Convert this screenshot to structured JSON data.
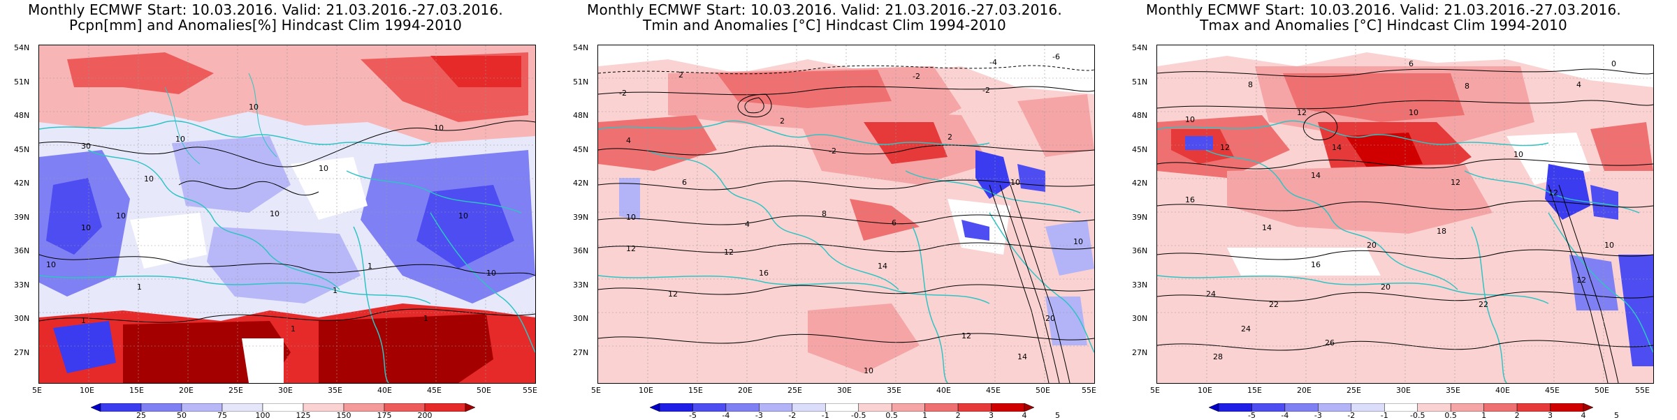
{
  "panels": [
    {
      "id": "pcpn",
      "title_line1": "Monthly ECMWF Start: 10.03.2016. Valid: 21.03.2016.-27.03.2016.",
      "title_line2": "Pcpn[mm] and Anomalies[%] Hindcast Clim 1994-2010",
      "lat_labels": [
        "54N",
        "51N",
        "48N",
        "45N",
        "42N",
        "39N",
        "36N",
        "33N",
        "30N",
        "27N"
      ],
      "lon_labels": [
        "5E",
        "10E",
        "15E",
        "20E",
        "25E",
        "30E",
        "35E",
        "40E",
        "45E",
        "50E",
        "55E"
      ],
      "colorbar": {
        "labels": [
          "25",
          "50",
          "75",
          "100",
          "125",
          "150",
          "175",
          "200"
        ],
        "colors": [
          "#0000c8",
          "#3b3bf0",
          "#8080f5",
          "#b8b8f8",
          "#e6e6fb",
          "#ffffff",
          "#fbd2d2",
          "#f59a9a",
          "#ee5b5b",
          "#e62a2a",
          "#a50000"
        ]
      },
      "contour_labels": [
        "10",
        "10",
        "10",
        "10",
        "10",
        "10",
        "10",
        "30",
        "10",
        "10",
        "10",
        "1",
        "1",
        "1",
        "1",
        "1",
        "1",
        "10"
      ]
    },
    {
      "id": "tmin",
      "title_line1": "Monthly ECMWF Start: 10.03.2016. Valid: 21.03.2016.-27.03.2016.",
      "title_line2": "Tmin and Anomalies [°C] Hindcast Clim 1994-2010",
      "lat_labels": [
        "54N",
        "51N",
        "48N",
        "45N",
        "42N",
        "39N",
        "36N",
        "33N",
        "30N",
        "27N"
      ],
      "lon_labels": [
        "5E",
        "10E",
        "15E",
        "20E",
        "25E",
        "30E",
        "35E",
        "40E",
        "45E",
        "50E",
        "55E"
      ],
      "colorbar": {
        "labels": [
          "-5",
          "-4",
          "-3",
          "-2",
          "-1",
          "-0.5",
          "0.5",
          "1",
          "2",
          "3",
          "4",
          "5"
        ],
        "colors": [
          "#0000c8",
          "#1e1ee6",
          "#4d4df2",
          "#8080f5",
          "#b3b3f8",
          "#dcdcfb",
          "#ffffff",
          "#fbd2d2",
          "#f5a5a5",
          "#ee7070",
          "#e63a3a",
          "#d00000",
          "#a50000"
        ]
      },
      "contour_labels": [
        "-2",
        "-2",
        "2",
        "2",
        "4",
        "-2",
        "6",
        "2",
        "10",
        "4",
        "8",
        "6",
        "10",
        "12",
        "12",
        "14",
        "16",
        "12",
        "10",
        "14",
        "10",
        "12",
        "-6",
        "-4",
        "-2",
        "20"
      ]
    },
    {
      "id": "tmax",
      "title_line1": "Monthly ECMWF Start: 10.03.2016. Valid: 21.03.2016.-27.03.2016.",
      "title_line2": "Tmax and Anomalies [°C] Hindcast Clim 1994-2010",
      "lat_labels": [
        "54N",
        "51N",
        "48N",
        "45N",
        "42N",
        "39N",
        "36N",
        "33N",
        "30N",
        "27N"
      ],
      "lon_labels": [
        "5E",
        "10E",
        "15E",
        "20E",
        "25E",
        "30E",
        "35E",
        "40E",
        "45E",
        "50E",
        "55E"
      ],
      "colorbar": {
        "labels": [
          "-5",
          "-4",
          "-3",
          "-2",
          "-1",
          "-0.5",
          "0.5",
          "1",
          "2",
          "3",
          "4",
          "5"
        ],
        "colors": [
          "#0000c8",
          "#1e1ee6",
          "#4d4df2",
          "#8080f5",
          "#b3b3f8",
          "#dcdcfb",
          "#ffffff",
          "#fbd2d2",
          "#f5a5a5",
          "#ee7070",
          "#e63a3a",
          "#d00000",
          "#a50000"
        ]
      },
      "contour_labels": [
        "0",
        "4",
        "6",
        "8",
        "8",
        "10",
        "10",
        "12",
        "14",
        "12",
        "10",
        "14",
        "16",
        "18",
        "20",
        "12",
        "12",
        "14",
        "16",
        "20",
        "22",
        "24",
        "26",
        "28",
        "22",
        "24",
        "10",
        "12"
      ]
    }
  ]
}
